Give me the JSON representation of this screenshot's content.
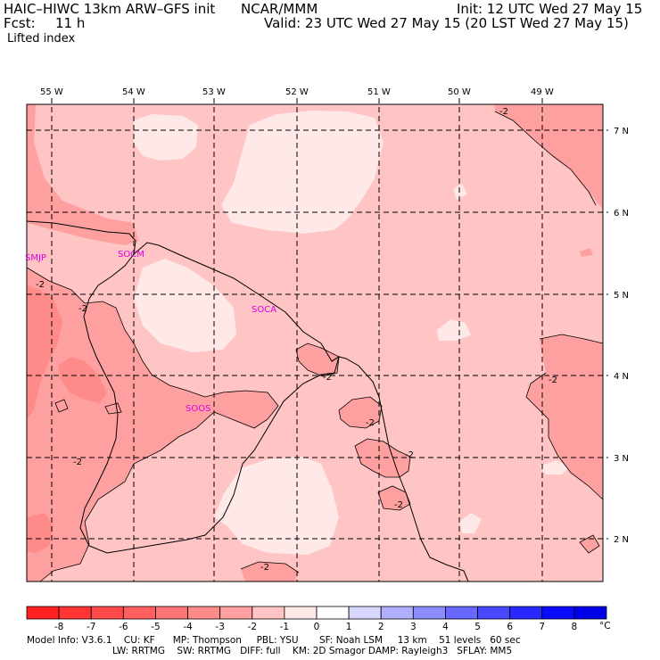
{
  "header": {
    "model": "HAIC–HIWC 13km ARW–GFS init",
    "org": "NCAR/MMM",
    "init": "Init: 12 UTC Wed 27 May 15",
    "fcst_label": "Fcst:",
    "fcst_value": "11 h",
    "valid": "Valid: 23 UTC Wed 27 May 15 (20 LST Wed 27 May 15)",
    "field": "Lifted index"
  },
  "map": {
    "lon_labels": [
      "55 W",
      "54 W",
      "53 W",
      "52 W",
      "51 W",
      "50 W",
      "49 W"
    ],
    "lat_labels": [
      "7 N",
      "6 N",
      "5 N",
      "4 N",
      "3 N",
      "2 N"
    ],
    "stations": [
      "SMJP",
      "SOCM",
      "SOCA",
      "SOOS"
    ],
    "contour_labels": [
      "-2",
      "-2",
      "-2",
      "-2",
      "-2",
      "-2",
      "-2",
      "-2",
      "-2",
      "-2"
    ]
  },
  "colorbar": {
    "ticks": [
      "-8",
      "-7",
      "-6",
      "-5",
      "-4",
      "-3",
      "-2",
      "-1",
      "0",
      "1",
      "2",
      "3",
      "4",
      "5",
      "6",
      "7",
      "8"
    ],
    "unit": "°C",
    "colors": [
      "#ff2020",
      "#ff3535",
      "#ff4a4a",
      "#ff5f5f",
      "#ff7474",
      "#ff8a8a",
      "#ffa0a0",
      "#ffc4c4",
      "#ffe8e8",
      "#ffffff",
      "#d8d8ff",
      "#b0b0ff",
      "#8c8cff",
      "#6868ff",
      "#4848ff",
      "#2828ff",
      "#0a0aff",
      "#0000e8"
    ]
  },
  "footer": {
    "line1": "Model Info: V3.6.1    CU: KF      MP: Thompson     PBL: YSU       SF: Noah LSM     13 km    51 levels   60 sec",
    "line2": "LW: RRTMG    SW: RRTMG   DIFF: full    KM: 2D Smagor DAMP: Rayleigh3   SFLAY: MM5"
  }
}
